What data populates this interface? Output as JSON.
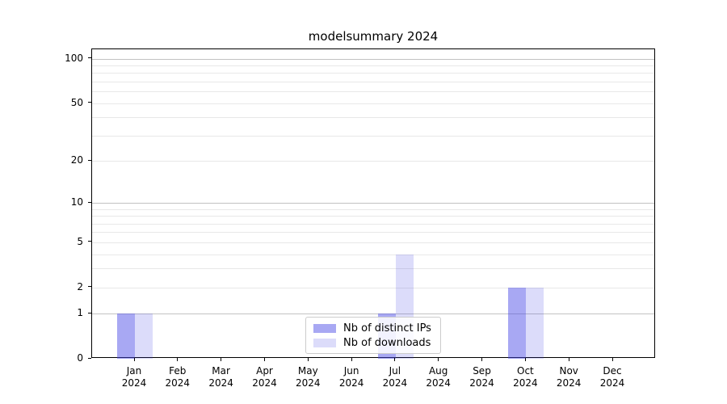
{
  "title": "modelsummary 2024",
  "chart_data": {
    "type": "bar",
    "title": "modelsummary 2024",
    "categories": [
      "Jan 2024",
      "Feb 2024",
      "Mar 2024",
      "Apr 2024",
      "May 2024",
      "Jun 2024",
      "Jul 2024",
      "Aug 2024",
      "Sep 2024",
      "Oct 2024",
      "Nov 2024",
      "Dec 2024"
    ],
    "series": [
      {
        "name": "Nb of distinct IPs",
        "base_color": "#4646e6",
        "alpha": 0.47,
        "rendered_color": "#a8a8f4",
        "values": [
          1,
          0,
          0,
          0,
          0,
          0,
          1,
          0,
          0,
          2,
          0,
          0
        ]
      },
      {
        "name": "Nb of downloads",
        "base_color": "#4646e6",
        "alpha": 0.19,
        "rendered_color": "#dcdcfa",
        "values": [
          1,
          0,
          0,
          0,
          0,
          0,
          4,
          0,
          0,
          2,
          0,
          0
        ]
      }
    ],
    "yscale": "log10(value+1)",
    "ylim": [
      0,
      115.7
    ],
    "ytick_values": [
      0,
      1,
      2,
      5,
      10,
      20,
      50,
      100
    ],
    "major_gridline_values": [
      1,
      10,
      100
    ],
    "minor_gridline_values": [
      2,
      3,
      4,
      5,
      6,
      7,
      8,
      9,
      20,
      30,
      40,
      50,
      60,
      70,
      80,
      90
    ],
    "grid": "horizontal",
    "legend_position": "lower center"
  },
  "colors": {
    "background": "#ffffff",
    "axis": "#000000",
    "grid_major": "#c2c2c2",
    "grid_minor": "#e8e8e8",
    "legend_border": "#cccccc",
    "bar_distinct_ips": "#a8a8f4",
    "bar_downloads": "#dcdcfa"
  }
}
